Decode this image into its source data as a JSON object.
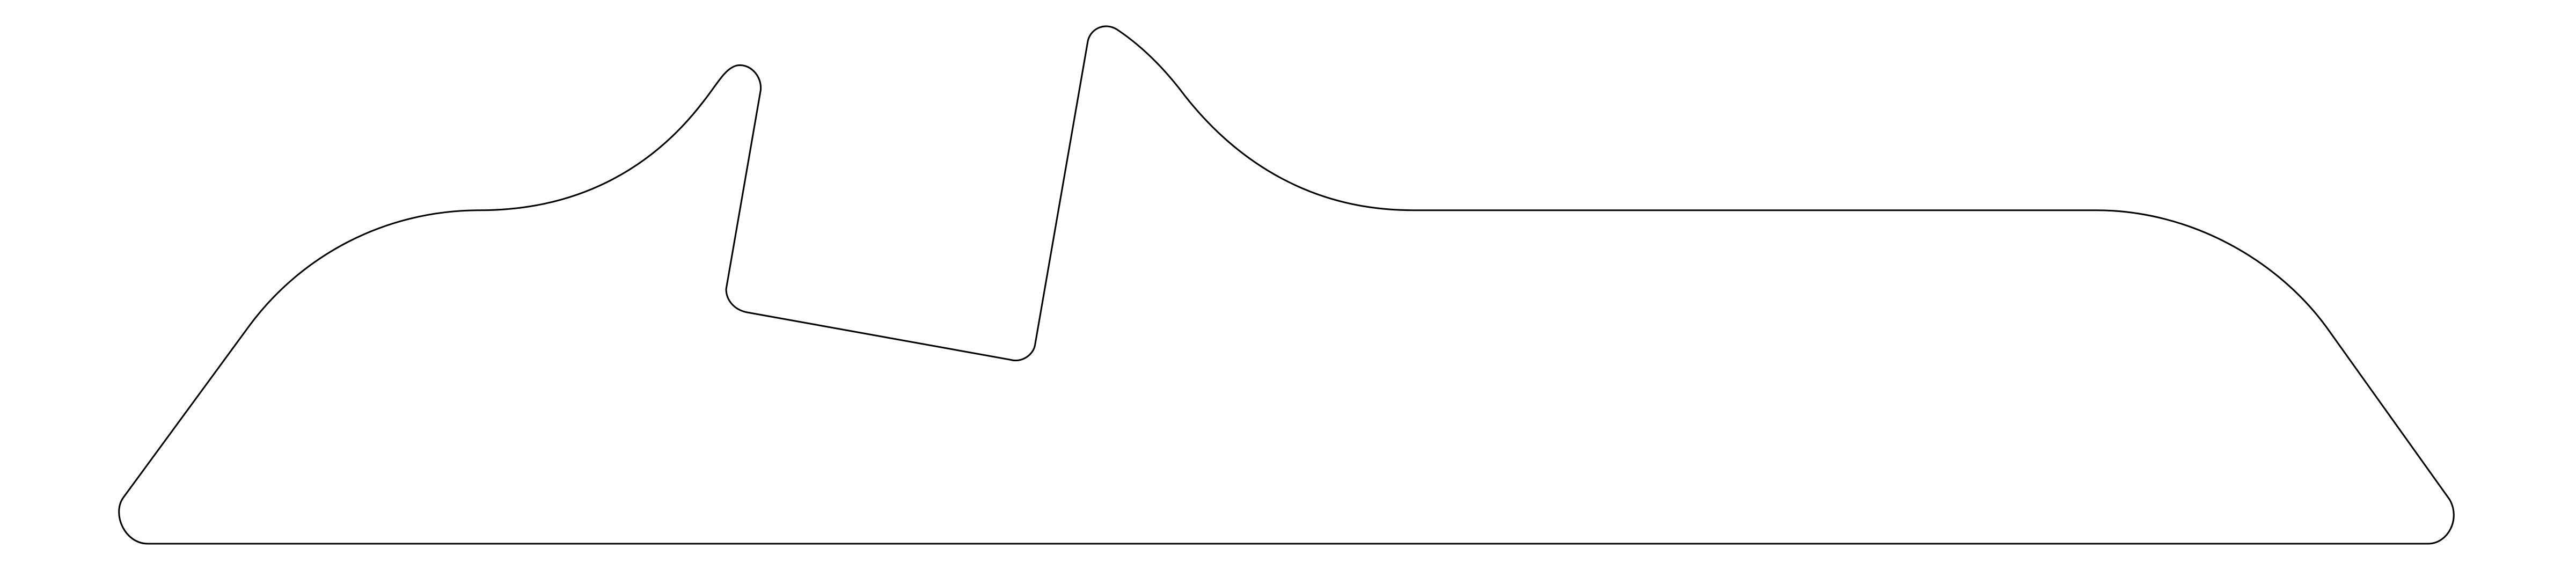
{
  "drawing": {
    "background_color": "#ffffff",
    "stroke_color": "#000000",
    "shape": "single closed outline profile with a slanted rectangular notch"
  }
}
